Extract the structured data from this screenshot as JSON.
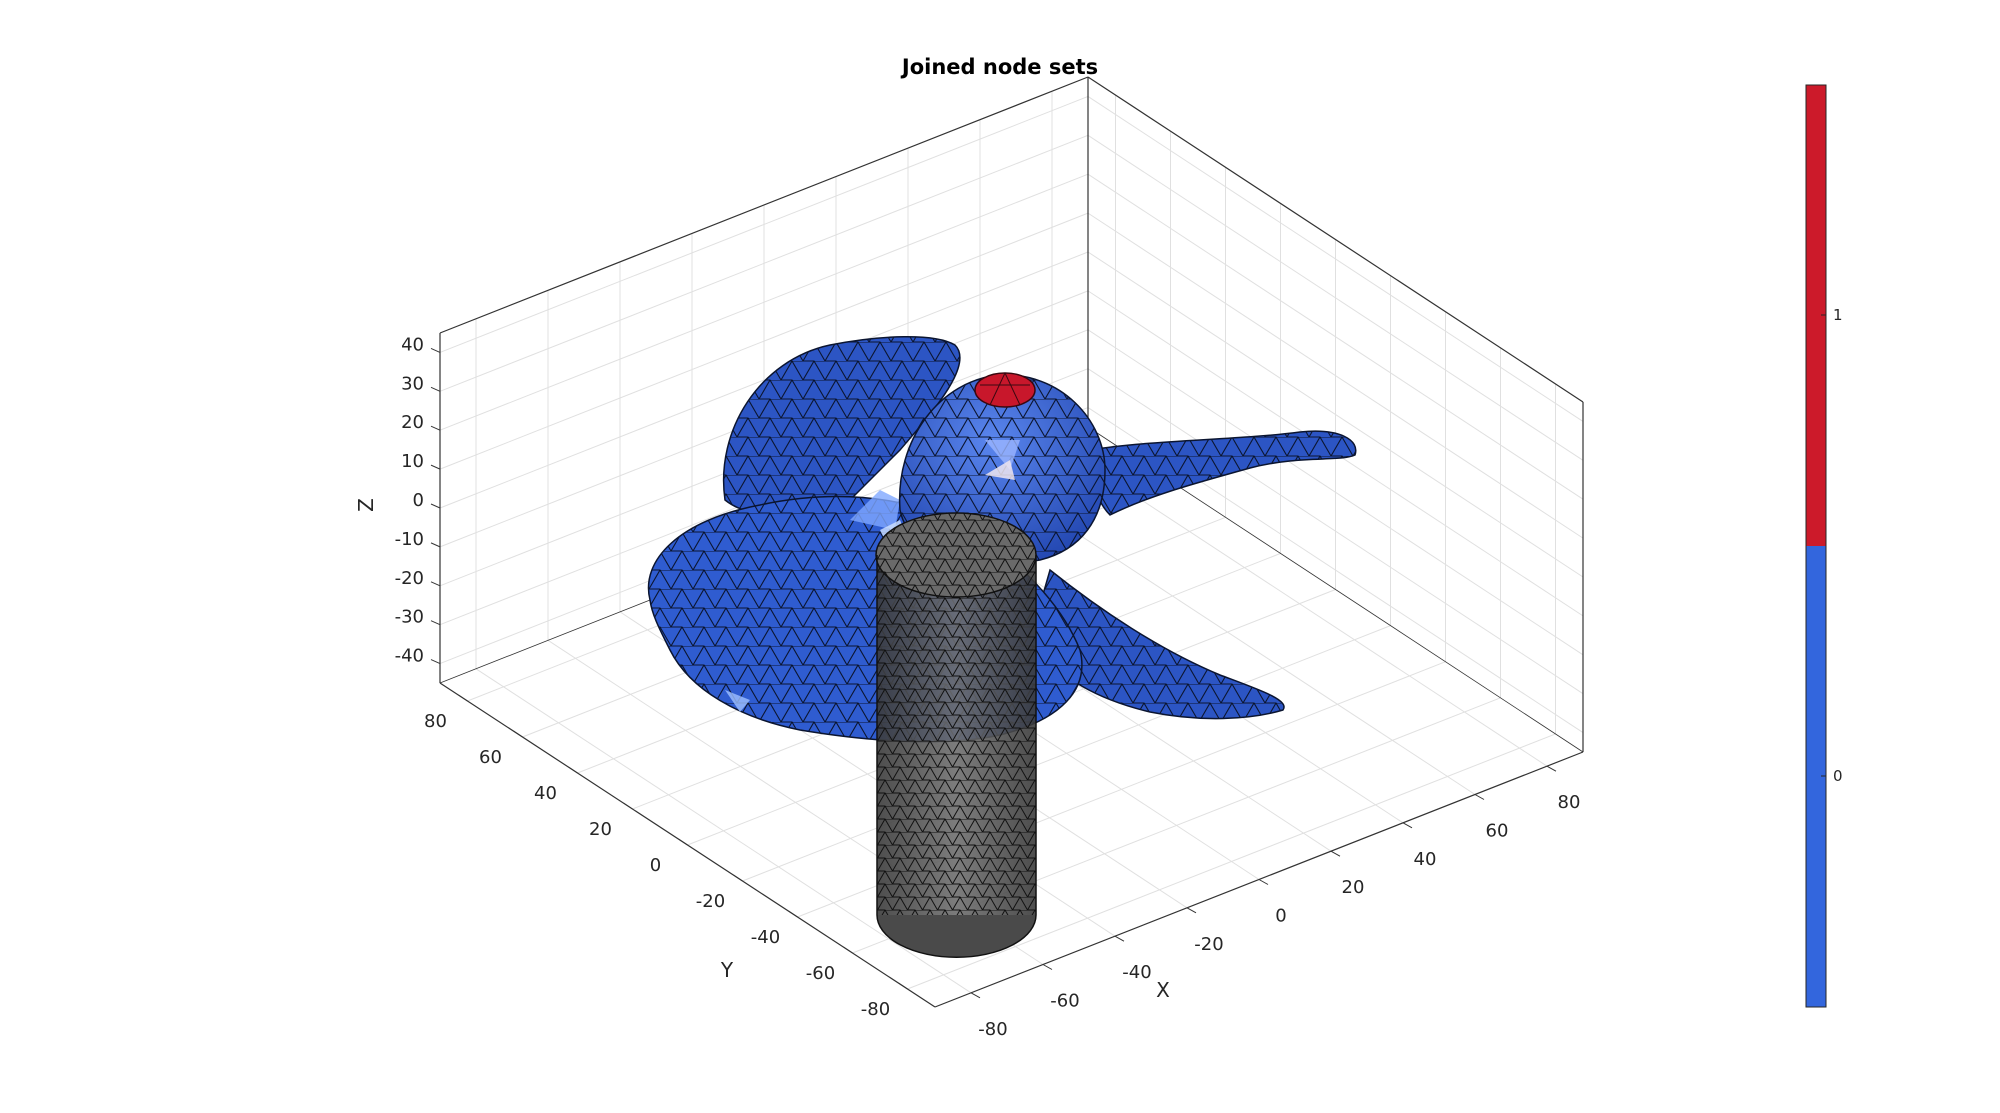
{
  "chart_data": {
    "type": "3d-surface",
    "title": "Joined node sets",
    "xlabel": "X",
    "ylabel": "Y",
    "zlabel": "Z",
    "x_ticks": [
      "-80",
      "-60",
      "-40",
      "-20",
      "0",
      "20",
      "40",
      "60",
      "80"
    ],
    "y_ticks": [
      "-80",
      "-60",
      "-40",
      "-20",
      "0",
      "20",
      "40",
      "60",
      "80"
    ],
    "z_ticks": [
      "-40",
      "-30",
      "-20",
      "-10",
      "0",
      "10",
      "20",
      "30",
      "40"
    ],
    "xlim": [
      -90,
      90
    ],
    "ylim": [
      -90,
      90
    ],
    "zlim": [
      -45,
      45
    ],
    "grid": true,
    "colorbar": {
      "ticks": [
        "0",
        "1"
      ],
      "levels": [
        {
          "value": 0,
          "color": "#3366dd"
        },
        {
          "value": 1,
          "color": "#cc1a2a"
        }
      ]
    },
    "objects": [
      {
        "name": "propeller",
        "node_set": 0,
        "color": "#3160d8"
      },
      {
        "name": "cylinder",
        "color": "#555555",
        "alpha": 0.75
      },
      {
        "name": "joined-nodes",
        "node_set": 1,
        "color": "#cc1a2a"
      }
    ]
  }
}
